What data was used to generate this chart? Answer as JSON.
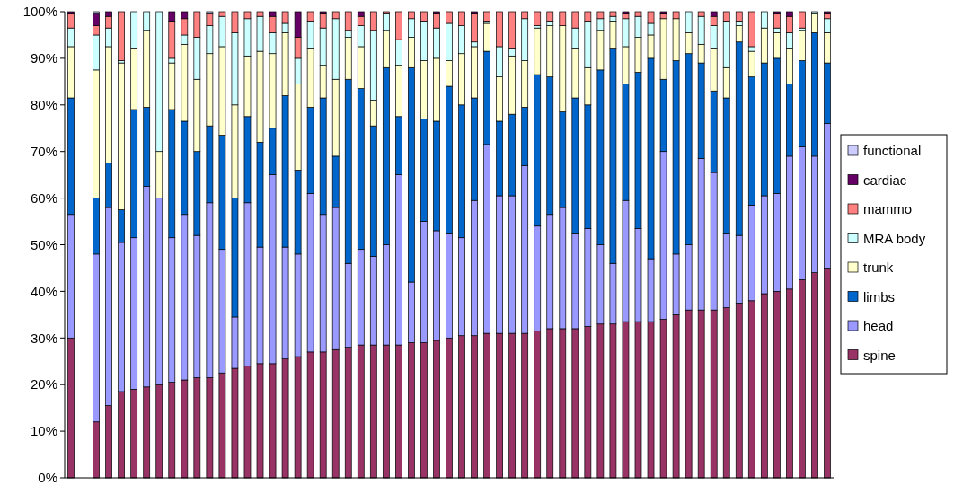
{
  "chart_data": {
    "type": "bar",
    "stacked": true,
    "legend": "right",
    "grid": false,
    "tick_labels": "y",
    "categories": [
      null,
      null,
      null,
      null,
      null,
      null,
      null,
      null,
      null,
      null,
      null,
      null,
      null,
      null,
      null,
      null,
      null,
      null,
      null,
      null,
      null,
      null,
      null,
      null,
      null,
      null,
      null,
      null,
      null,
      null,
      null,
      null,
      null,
      null,
      null,
      null,
      null,
      null,
      null,
      null,
      null,
      null,
      null,
      null,
      null,
      null,
      null,
      null,
      null,
      null,
      null,
      null,
      null,
      null,
      null,
      null,
      null,
      null,
      null,
      null,
      null
    ],
    "ylim": [
      0,
      100
    ],
    "yticks": [
      {
        "value": 0,
        "label": "0%"
      },
      {
        "value": 10,
        "label": "10%"
      },
      {
        "value": 20,
        "label": "20%"
      },
      {
        "value": 30,
        "label": "30%"
      },
      {
        "value": 40,
        "label": "40%"
      },
      {
        "value": 50,
        "label": "50%"
      },
      {
        "value": 60,
        "label": "60%"
      },
      {
        "value": 70,
        "label": "70%"
      },
      {
        "value": 80,
        "label": "80%"
      },
      {
        "value": 90,
        "label": "90%"
      },
      {
        "value": 100,
        "label": "100%"
      }
    ],
    "series": [
      {
        "name": "spine",
        "color": "#993366",
        "values": [
          30,
          null,
          12,
          15.5,
          18.5,
          19,
          19.5,
          20,
          20.5,
          21,
          21.5,
          21.5,
          22.5,
          23.5,
          24,
          24.5,
          24.5,
          25.5,
          26,
          27,
          27,
          27.5,
          28,
          28.5,
          28.5,
          28.5,
          28.5,
          29,
          29,
          29.5,
          30,
          30.5,
          30.5,
          31,
          31,
          31,
          31,
          31.5,
          32,
          32,
          32,
          32.5,
          33,
          33,
          33.5,
          33.5,
          33.5,
          34,
          35,
          36,
          36,
          36,
          36.5,
          37.5,
          38,
          39.5,
          40,
          40.5,
          42.5,
          44,
          45
        ]
      },
      {
        "name": "head",
        "color": "#9999ff",
        "values": [
          26.5,
          null,
          36,
          42.5,
          32,
          32.5,
          43,
          40,
          31,
          35.5,
          30.5,
          37.5,
          26.5,
          11,
          35,
          25,
          40.5,
          24,
          22,
          34,
          29.5,
          30.5,
          18,
          20.5,
          19,
          21.5,
          36.5,
          13,
          26,
          23.5,
          22.5,
          21,
          29,
          40.5,
          29.5,
          29.5,
          36,
          22.5,
          24.5,
          26,
          20.5,
          21,
          17,
          13,
          26,
          20,
          13.5,
          36,
          13,
          14,
          32.5,
          29.5,
          16,
          14.5,
          20.5,
          21,
          21,
          28.5,
          28.5,
          25,
          31
        ]
      },
      {
        "name": "limbs",
        "color": "#0066cc",
        "values": [
          25,
          null,
          12,
          9.5,
          7,
          27.5,
          17,
          0,
          27.5,
          20,
          18,
          16.5,
          24.5,
          25.5,
          18.5,
          22.5,
          10,
          32.5,
          18,
          18.5,
          25,
          11,
          39.5,
          34.5,
          28,
          38,
          12.5,
          46,
          22,
          23.5,
          31.5,
          28.5,
          22,
          20,
          16,
          17.5,
          12.5,
          32.5,
          29.5,
          20.5,
          29,
          26.5,
          37.5,
          46,
          25,
          33.5,
          43,
          15.5,
          41.5,
          41,
          20.5,
          17.5,
          29,
          41.5,
          27.5,
          28.5,
          29,
          15.5,
          18.5,
          26.5,
          13
        ]
      },
      {
        "name": "trunk",
        "color": "#ffffcc",
        "values": [
          11,
          null,
          27.5,
          25,
          31.5,
          13,
          16.5,
          10,
          10,
          16.5,
          15.5,
          15.5,
          19,
          20,
          13,
          19.5,
          16,
          13.5,
          18.5,
          12.5,
          7,
          16.5,
          9,
          9,
          5.5,
          8,
          11,
          6.5,
          12.5,
          13.5,
          5.5,
          11,
          11,
          6,
          9.5,
          12.5,
          10,
          10,
          11,
          18.5,
          10.5,
          8,
          8.5,
          6,
          8,
          7.5,
          5,
          13,
          9,
          4.5,
          4,
          9,
          6.5,
          3.5,
          5.5,
          7.5,
          5.5,
          7.5,
          6.5,
          4,
          6.5
        ]
      },
      {
        "name": "MRA body",
        "color": "#ccffff",
        "values": [
          4,
          null,
          7.5,
          4,
          0.5,
          8,
          4,
          30,
          1,
          2,
          9,
          6,
          6.5,
          15.5,
          8,
          7.5,
          4.5,
          2,
          5.5,
          6,
          8,
          13,
          1.5,
          4.5,
          15,
          3.5,
          5.5,
          4,
          8.5,
          6.5,
          8,
          6,
          1,
          0.5,
          6.5,
          1.5,
          9,
          0.5,
          1,
          0,
          4.5,
          10,
          2.5,
          1,
          6,
          4.5,
          2.5,
          0,
          0,
          4.5,
          6,
          5,
          10,
          1,
          1,
          3.5,
          1,
          3.5,
          0.5,
          0.5,
          3
        ]
      },
      {
        "name": "mammo",
        "color": "#ff8080",
        "values": [
          3,
          null,
          2,
          2.5,
          10.5,
          0,
          0,
          0,
          8,
          3.5,
          5.5,
          2.5,
          1,
          4.5,
          1.5,
          1,
          3.5,
          2.5,
          4.5,
          2,
          3,
          1.5,
          4,
          2,
          4,
          0.5,
          6,
          1.5,
          2,
          3,
          2.5,
          3,
          6,
          2,
          7.5,
          8,
          1.5,
          3,
          2,
          3,
          3.5,
          2,
          1.5,
          1,
          1,
          1,
          2.5,
          1,
          1.5,
          0,
          1,
          2,
          2,
          2,
          7.5,
          0,
          3,
          3.5,
          3.5,
          0,
          1
        ]
      },
      {
        "name": "cardiac",
        "color": "#660066",
        "values": [
          0.5,
          null,
          2.5,
          1,
          0,
          0,
          0,
          0,
          2,
          1.5,
          0,
          0,
          0,
          0,
          0,
          0,
          1,
          0,
          5.5,
          0,
          0.5,
          0,
          0,
          1,
          0,
          0,
          0,
          0,
          0,
          0.5,
          0,
          0,
          0.5,
          0,
          0,
          0,
          0,
          0,
          0,
          0,
          0,
          0,
          0,
          0,
          0.5,
          0,
          0,
          0.5,
          0,
          0,
          0,
          1,
          0,
          0,
          0,
          0,
          0.5,
          1,
          0,
          0,
          0.5
        ]
      },
      {
        "name": "functional",
        "color": "#ccccff",
        "values": [
          0,
          null,
          0.5,
          0,
          0,
          0,
          0,
          0,
          0,
          0,
          0,
          0.5,
          0,
          0,
          0,
          0,
          0,
          0,
          0,
          0,
          0,
          0,
          0,
          0,
          0,
          0,
          0,
          0,
          0,
          0,
          0,
          0,
          0,
          0,
          0,
          0,
          0,
          0,
          0,
          0,
          0,
          0,
          0,
          0,
          0,
          0,
          0,
          0,
          0,
          0,
          0,
          0,
          0,
          0,
          0,
          0,
          0,
          0,
          0,
          0,
          0
        ]
      }
    ]
  }
}
